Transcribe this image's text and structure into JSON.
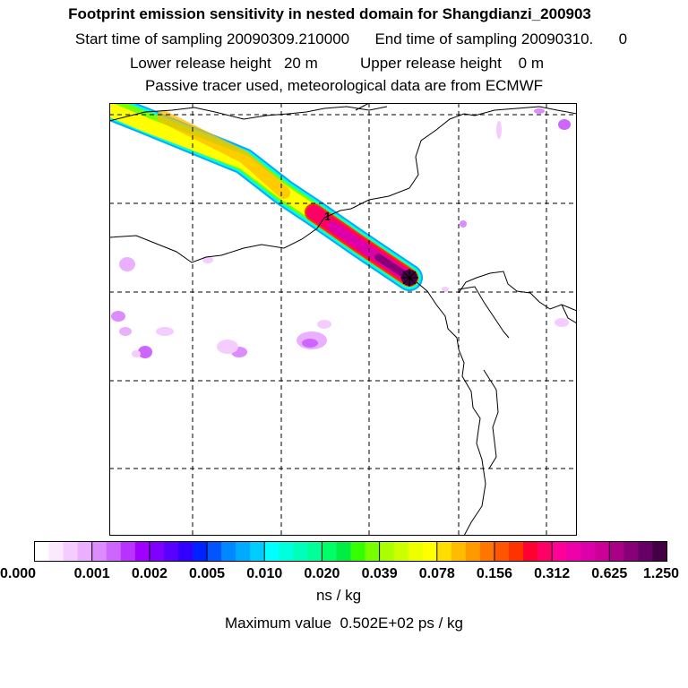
{
  "title": "Footprint emission sensitivity in nested domain for Shangdianzi_200903",
  "sampling_line": "Start time of sampling 20090309.210000      End time of sampling 20090310.      0",
  "release_line": "Lower release height   20 m          Upper release height    0 m",
  "tracer_line": "Passive tracer used, meteorological data are from ECMWF",
  "receptor_label": "1",
  "legend": {
    "tick_labels": [
      "0.000",
      "0.001",
      "0.002",
      "0.005",
      "0.010",
      "0.020",
      "0.039",
      "0.078",
      "0.156",
      "0.312",
      "0.625",
      "1.250"
    ],
    "colors": [
      "#ffffff",
      "#fbe9ff",
      "#f4ccff",
      "#eab0ff",
      "#dc8cff",
      "#cc66ff",
      "#b833ff",
      "#9f00ff",
      "#7f00ff",
      "#5a00ff",
      "#3300ff",
      "#0022ff",
      "#0055ff",
      "#0088ff",
      "#00aaff",
      "#00ccff",
      "#00ffff",
      "#00ffdd",
      "#00ffbb",
      "#00ff99",
      "#00ff66",
      "#00ee44",
      "#33ff00",
      "#77ff00",
      "#aaff00",
      "#ccff00",
      "#eeff00",
      "#ffff00",
      "#ffdd00",
      "#ffbb00",
      "#ff9900",
      "#ff7700",
      "#ff5500",
      "#ff3300",
      "#ff0033",
      "#ff0066",
      "#ff0099",
      "#ee00aa",
      "#dd00aa",
      "#cc0099",
      "#aa0088",
      "#880077",
      "#660066",
      "#440044"
    ]
  },
  "unit_label": "ns / kg",
  "max_value_line": "Maximum value  0.502E+02 ps / kg"
}
